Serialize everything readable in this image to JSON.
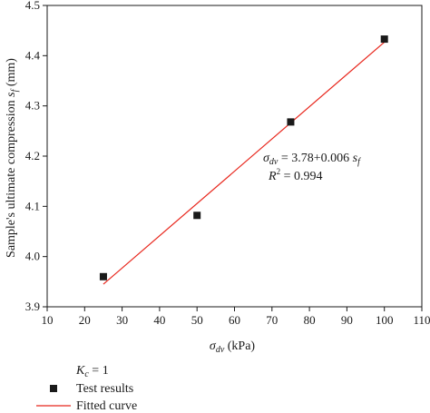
{
  "chart_data": {
    "type": "scatter",
    "title": "",
    "xlabel": "σdv (kPa)",
    "xlabel_parts": {
      "symbol": "σ",
      "subscript": "dv",
      "rest": " (kPa)"
    },
    "ylabel": "Sample's ultimate compression sf (mm)",
    "ylabel_parts": {
      "text": "Sample's ultimate compression ",
      "symbol": "s",
      "subscript": "f",
      "rest": " (mm)"
    },
    "xlim": [
      10,
      110
    ],
    "ylim": [
      3.9,
      4.5
    ],
    "xticks": [
      "10",
      "20",
      "30",
      "40",
      "50",
      "60",
      "70",
      "80",
      "90",
      "100",
      "110"
    ],
    "yticks": [
      "3.9",
      "4.0",
      "4.1",
      "4.2",
      "4.3",
      "4.4",
      "4.5"
    ],
    "grid": false,
    "legend_position": "bottom-left",
    "legend_header": {
      "symbol": "K",
      "subscript": "c",
      "rest": " = 1"
    },
    "series": [
      {
        "name": "Test results",
        "kind": "scatter",
        "marker": "square",
        "color": "#1a1a1a",
        "x": [
          25,
          50,
          75,
          100
        ],
        "y": [
          3.96,
          4.082,
          4.268,
          4.433
        ]
      },
      {
        "name": "Fitted curve",
        "kind": "line",
        "color": "#e8261c",
        "x": [
          25,
          100
        ],
        "y": [
          3.945,
          4.427
        ]
      }
    ],
    "annotations": {
      "equation": {
        "symbol": "σ",
        "subscript": "dv",
        "rest": " = 3.78+0.006 ",
        "var": "s",
        "var_subscript": "f"
      },
      "r_squared": {
        "symbol": "R",
        "superscript": "2",
        "rest": " = 0.994"
      }
    }
  }
}
